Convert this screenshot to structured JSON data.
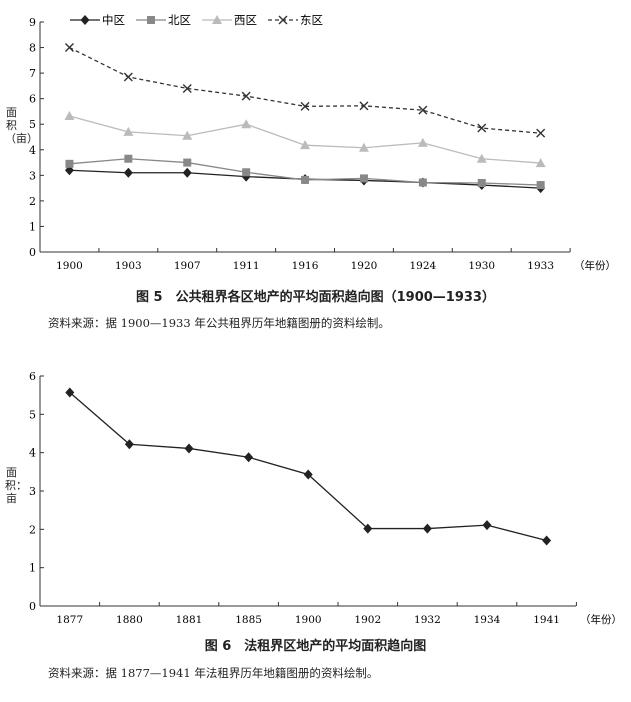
{
  "chart_data": [
    {
      "type": "line",
      "title": "图 5　公共租界各区地产的平均面积趋向图（1900—1933）",
      "ylabel": "面积（亩）",
      "xlabel": "（年份）",
      "ylim": [
        0,
        9
      ],
      "yticks": [
        0,
        1,
        2,
        3,
        4,
        5,
        6,
        7,
        8,
        9
      ],
      "categories": [
        "1900",
        "1903",
        "1907",
        "1911",
        "1916",
        "1920",
        "1924",
        "1930",
        "1933"
      ],
      "series": [
        {
          "name": "中区",
          "color": "#222222",
          "marker": "diamond",
          "dash": false,
          "values": [
            3.2,
            3.1,
            3.1,
            2.95,
            2.85,
            2.8,
            2.72,
            2.62,
            2.5
          ]
        },
        {
          "name": "北区",
          "color": "#888888",
          "marker": "square",
          "dash": false,
          "values": [
            3.45,
            3.65,
            3.5,
            3.12,
            2.82,
            2.88,
            2.72,
            2.7,
            2.62
          ]
        },
        {
          "name": "西区",
          "color": "#bbbbbb",
          "marker": "triangle",
          "dash": false,
          "values": [
            5.32,
            4.7,
            4.55,
            5.0,
            4.18,
            4.08,
            4.27,
            3.65,
            3.48
          ]
        },
        {
          "name": "东区",
          "color": "#333333",
          "marker": "x",
          "dash": true,
          "values": [
            8.0,
            6.85,
            6.4,
            6.1,
            5.7,
            5.72,
            5.55,
            4.85,
            4.65
          ]
        }
      ],
      "legend": "top-left",
      "source": "资料来源：据 1900—1933 年公共租界历年地籍图册的资料绘制。"
    },
    {
      "type": "line",
      "title": "图 6　法租界区地产的平均面积趋向图",
      "ylabel": "面积：亩",
      "xlabel": "（年份）",
      "ylim": [
        0,
        6
      ],
      "yticks": [
        0,
        1,
        2,
        3,
        4,
        5,
        6
      ],
      "categories": [
        "1877",
        "1880",
        "1881",
        "1885",
        "1900",
        "1902",
        "1932",
        "1934",
        "1941"
      ],
      "series": [
        {
          "name": "法租界",
          "color": "#222222",
          "marker": "diamond",
          "dash": false,
          "values": [
            5.57,
            4.22,
            4.11,
            3.88,
            3.43,
            2.02,
            2.02,
            2.11,
            1.71
          ]
        }
      ],
      "source": "资料来源：据 1877—1941 年法租界历年地籍图册的资料绘制。"
    }
  ]
}
